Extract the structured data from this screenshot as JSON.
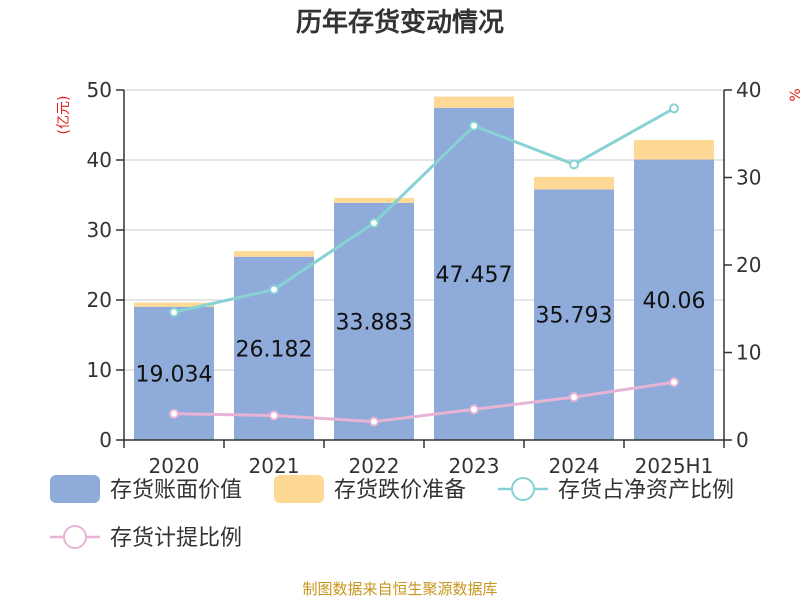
{
  "chart_data": {
    "type": "bar",
    "title": "历年存货变动情况",
    "left_axis_label": "(亿元)",
    "right_axis_label": "%",
    "categories": [
      "2020",
      "2021",
      "2022",
      "2023",
      "2024",
      "2025H1"
    ],
    "left_ylim": [
      0,
      50
    ],
    "left_ticks": [
      0,
      10,
      20,
      30,
      40,
      50
    ],
    "right_ylim": [
      0,
      40
    ],
    "right_ticks": [
      0,
      10,
      20,
      30,
      40
    ],
    "series": [
      {
        "name": "存货账面价值",
        "kind": "bar",
        "axis": "left",
        "color": "#8eabd9",
        "values": [
          19.034,
          26.182,
          33.883,
          47.457,
          35.793,
          40.06
        ],
        "labels": [
          "19.034",
          "26.182",
          "33.883",
          "47.457",
          "35.793",
          "40.06"
        ]
      },
      {
        "name": "存货跌价准备",
        "kind": "bar-stacked",
        "axis": "left",
        "color": "#fdd995",
        "values": [
          0.6,
          0.8,
          0.7,
          1.6,
          1.8,
          2.8
        ]
      },
      {
        "name": "存货占净资产比例",
        "kind": "line",
        "axis": "right",
        "color": "#86d2d4",
        "values": [
          14.6,
          17.2,
          24.8,
          35.9,
          31.5,
          37.9
        ]
      },
      {
        "name": "存货计提比例",
        "kind": "line",
        "axis": "right",
        "color": "#e8b4d6",
        "values": [
          3.0,
          2.8,
          2.1,
          3.5,
          4.9,
          6.6
        ]
      }
    ],
    "grid": true,
    "legend_position": "bottom"
  },
  "source_note": "制图数据来自恒生聚源数据库"
}
